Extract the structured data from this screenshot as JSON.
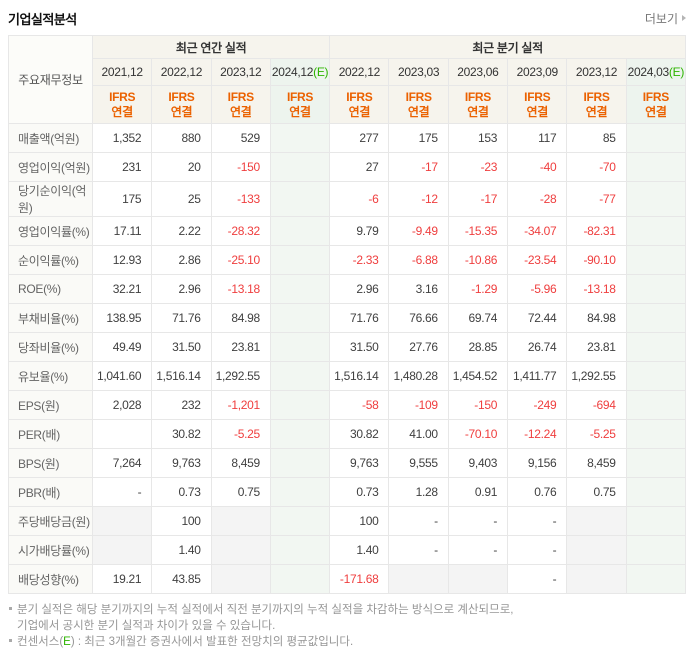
{
  "page": {
    "title": "기업실적분석",
    "more_label": "더보기"
  },
  "colors": {
    "accent_orange": "#eb6100",
    "accent_green": "#2db400",
    "negative_red": "#ef3e3e"
  },
  "table": {
    "corner_label": "주요재무정보",
    "ifrs_label": "IFRS\n연결",
    "groups": [
      {
        "label": "최근 연간 실적",
        "columns": [
          {
            "label": "2021,12"
          },
          {
            "label": "2022,12"
          },
          {
            "label": "2023,12"
          },
          {
            "label": "2024,12",
            "e": "(E)"
          }
        ]
      },
      {
        "label": "최근 분기 실적",
        "columns": [
          {
            "label": "2022,12"
          },
          {
            "label": "2023,03"
          },
          {
            "label": "2023,06"
          },
          {
            "label": "2023,09"
          },
          {
            "label": "2023,12"
          },
          {
            "label": "2024,03",
            "e": "(E)"
          }
        ]
      }
    ],
    "rows": [
      {
        "label": "매출액(억원)",
        "annual": [
          "1,352",
          "880",
          "529",
          ""
        ],
        "quarterly": [
          "277",
          "175",
          "153",
          "117",
          "85",
          ""
        ]
      },
      {
        "label": "영업이익(억원)",
        "annual": [
          "231",
          "20",
          "-150",
          ""
        ],
        "quarterly": [
          "27",
          "-17",
          "-23",
          "-40",
          "-70",
          ""
        ]
      },
      {
        "label": "당기순이익(억원)",
        "annual": [
          "175",
          "25",
          "-133",
          ""
        ],
        "quarterly": [
          "-6",
          "-12",
          "-17",
          "-28",
          "-77",
          ""
        ]
      },
      {
        "label": "영업이익률(%)",
        "group_start": true,
        "annual": [
          "17.11",
          "2.22",
          "-28.32",
          ""
        ],
        "quarterly": [
          "9.79",
          "-9.49",
          "-15.35",
          "-34.07",
          "-82.31",
          ""
        ]
      },
      {
        "label": "순이익률(%)",
        "annual": [
          "12.93",
          "2.86",
          "-25.10",
          ""
        ],
        "quarterly": [
          "-2.33",
          "-6.88",
          "-10.86",
          "-23.54",
          "-90.10",
          ""
        ]
      },
      {
        "label": "ROE(%)",
        "annual": [
          "32.21",
          "2.96",
          "-13.18",
          ""
        ],
        "quarterly": [
          "2.96",
          "3.16",
          "-1.29",
          "-5.96",
          "-13.18",
          ""
        ]
      },
      {
        "label": "부채비율(%)",
        "group_start": true,
        "annual": [
          "138.95",
          "71.76",
          "84.98",
          ""
        ],
        "quarterly": [
          "71.76",
          "76.66",
          "69.74",
          "72.44",
          "84.98",
          ""
        ]
      },
      {
        "label": "당좌비율(%)",
        "annual": [
          "49.49",
          "31.50",
          "23.81",
          ""
        ],
        "quarterly": [
          "31.50",
          "27.76",
          "28.85",
          "26.74",
          "23.81",
          ""
        ]
      },
      {
        "label": "유보율(%)",
        "annual": [
          "1,041.60",
          "1,516.14",
          "1,292.55",
          ""
        ],
        "quarterly": [
          "1,516.14",
          "1,480.28",
          "1,454.52",
          "1,411.77",
          "1,292.55",
          ""
        ]
      },
      {
        "label": "EPS(원)",
        "group_start": true,
        "annual": [
          "2,028",
          "232",
          "-1,201",
          ""
        ],
        "quarterly": [
          "-58",
          "-109",
          "-150",
          "-249",
          "-694",
          ""
        ]
      },
      {
        "label": "PER(배)",
        "annual": [
          "",
          "30.82",
          "-5.25",
          ""
        ],
        "quarterly": [
          "30.82",
          "41.00",
          "-70.10",
          "-12.24",
          "-5.25",
          ""
        ]
      },
      {
        "label": "BPS(원)",
        "annual": [
          "7,264",
          "9,763",
          "8,459",
          ""
        ],
        "quarterly": [
          "9,763",
          "9,555",
          "9,403",
          "9,156",
          "8,459",
          ""
        ]
      },
      {
        "label": "PBR(배)",
        "annual": [
          "-",
          "0.73",
          "0.75",
          ""
        ],
        "quarterly": [
          "0.73",
          "1.28",
          "0.91",
          "0.76",
          "0.75",
          ""
        ]
      },
      {
        "label": "주당배당금(원)",
        "group_start": true,
        "annual": [
          {
            "t": "",
            "shaded": true
          },
          "100",
          {
            "t": "",
            "shaded": true
          },
          ""
        ],
        "quarterly": [
          "100",
          "-",
          "-",
          "-",
          {
            "t": "",
            "shaded": true
          },
          ""
        ]
      },
      {
        "label": "시가배당률(%)",
        "annual": [
          {
            "t": "",
            "shaded": true
          },
          "1.40",
          {
            "t": "",
            "shaded": true
          },
          ""
        ],
        "quarterly": [
          "1.40",
          "-",
          "-",
          "-",
          {
            "t": "",
            "shaded": true
          },
          ""
        ]
      },
      {
        "label": "배당성향(%)",
        "annual": [
          "19.21",
          "43.85",
          {
            "t": "",
            "shaded": true
          },
          ""
        ],
        "quarterly": [
          "-171.68",
          {
            "t": "",
            "shaded": true
          },
          {
            "t": "",
            "shaded": true
          },
          "-",
          {
            "t": "",
            "shaded": true
          },
          ""
        ]
      }
    ]
  },
  "footer": {
    "note1_line1": "분기 실적은 해당 분기까지의 누적 실적에서 직전 분기까지의 누적 실적을 차감하는 방식으로 계산되므로,",
    "note1_line2": "기업에서 공시한 분기 실적과 차이가 있을 수 있습니다.",
    "note2_pre": "컨센서스(",
    "note2_e": "E",
    "note2_post": ") : 최근 3개월간 증권사에서 발표한 전망치의 평균값입니다."
  }
}
